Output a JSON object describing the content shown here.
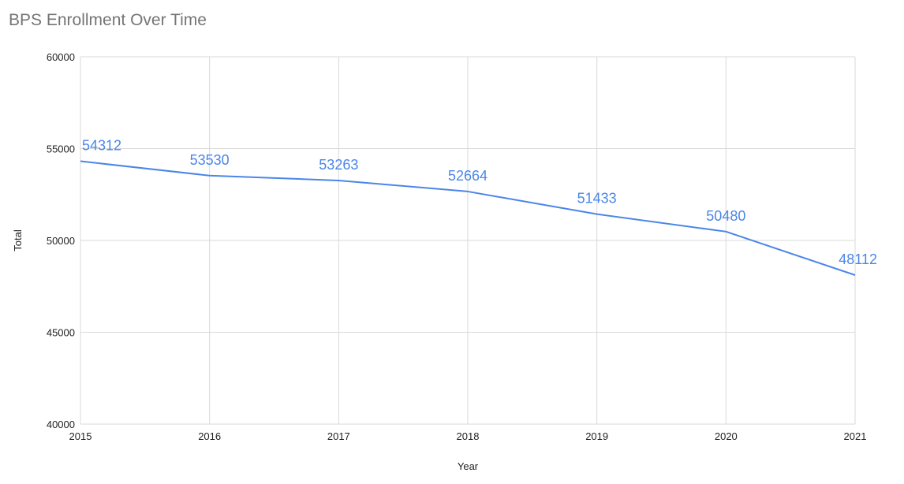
{
  "chart_data": {
    "type": "line",
    "title": "BPS Enrollment Over Time",
    "xlabel": "Year",
    "ylabel": "Total",
    "categories": [
      "2015",
      "2016",
      "2017",
      "2018",
      "2019",
      "2020",
      "2021"
    ],
    "series": [
      {
        "values": [
          54312,
          53530,
          53263,
          52664,
          51433,
          50480,
          48112
        ],
        "data_labels": [
          "54312",
          "53530",
          "53263",
          "52664",
          "51433",
          "50480",
          "48112"
        ],
        "color": "#4a86e8"
      }
    ],
    "ylim": [
      40000,
      60000
    ],
    "yticks": [
      "40000",
      "45000",
      "50000",
      "55000",
      "60000"
    ],
    "ytick_values": [
      40000,
      45000,
      50000,
      55000,
      60000
    ],
    "grid": true,
    "legend": "none",
    "colors": {
      "line": "#4a86e8",
      "grid": "#d9d9d9",
      "title": "#757575",
      "text": "#222222"
    }
  }
}
